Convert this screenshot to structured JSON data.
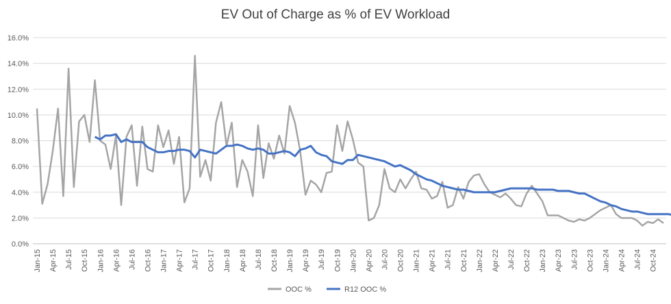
{
  "chart_data": {
    "type": "line",
    "title": "EV Out of Charge as % of EV Workload",
    "xlabel": "",
    "ylabel": "",
    "ylim": [
      0,
      16
    ],
    "y_ticks": [
      "0.0%",
      "2.0%",
      "4.0%",
      "6.0%",
      "8.0%",
      "10.0%",
      "12.0%",
      "14.0%",
      "16.0%"
    ],
    "grid": true,
    "legend_position": "bottom",
    "x_labels": [
      "Jan-15",
      "Apr-15",
      "Jul-15",
      "Oct-15",
      "Jan-16",
      "Apr-16",
      "Jul-16",
      "Oct-16",
      "Jan-17",
      "Apr-17",
      "Jul-17",
      "Oct-17",
      "Jan-18",
      "Apr-18",
      "Jul-18",
      "Oct-18",
      "Jan-19",
      "Apr-19",
      "Jul-19",
      "Oct-19",
      "Jan-20",
      "Apr-20",
      "Jul-20",
      "Oct-20",
      "Jan-21",
      "Apr-21",
      "Jul-21",
      "Oct-21",
      "Jan-22",
      "Apr-22",
      "Jul-22",
      "Oct-22",
      "Jan-23",
      "Apr-23",
      "Jul-23",
      "Oct-23",
      "Jan-24",
      "Apr-24",
      "Jul-24",
      "Oct-24"
    ],
    "series": [
      {
        "name": "OOC %",
        "color": "#a5a5a5",
        "values": [
          10.5,
          3.1,
          4.6,
          7.2,
          10.5,
          3.7,
          13.6,
          4.4,
          9.5,
          10.0,
          7.9,
          12.7,
          8.0,
          7.7,
          5.8,
          8.4,
          3.0,
          8.3,
          9.2,
          4.5,
          9.1,
          5.8,
          5.6,
          9.2,
          7.5,
          8.8,
          6.2,
          8.3,
          3.2,
          4.3,
          14.6,
          5.2,
          6.5,
          4.9,
          9.4,
          11.0,
          7.6,
          9.4,
          4.4,
          6.5,
          5.6,
          3.7,
          9.2,
          5.1,
          7.8,
          6.6,
          8.4,
          7.0,
          10.7,
          9.4,
          7.2,
          3.8,
          4.9,
          4.6,
          4.0,
          5.5,
          5.6,
          9.2,
          7.2,
          9.5,
          8.1,
          6.3,
          6.0,
          1.8,
          2.0,
          3.0,
          5.8,
          4.3,
          4.0,
          5.0,
          4.3,
          5.0,
          5.6,
          4.3,
          4.2,
          3.5,
          3.7,
          4.8,
          2.8,
          3.0,
          4.4,
          3.5,
          4.8,
          5.3,
          5.4,
          4.6,
          4.0,
          3.8,
          3.6,
          3.9,
          3.5,
          3.0,
          2.9,
          3.9,
          4.5,
          3.9,
          3.3,
          2.2,
          2.2,
          2.2,
          2.0,
          1.8,
          1.7,
          1.9,
          1.8,
          2.0,
          2.3,
          2.6,
          2.8,
          3.0,
          2.3,
          2.0,
          2.0,
          2.0,
          1.8,
          1.4,
          1.7,
          1.6,
          1.9,
          1.6
        ]
      },
      {
        "name": "R12 OOC %",
        "color": "#4472c4",
        "start_index": 11,
        "values": [
          8.3,
          8.1,
          8.4,
          8.4,
          8.5,
          7.9,
          8.1,
          7.9,
          7.9,
          7.9,
          7.5,
          7.3,
          7.1,
          7.1,
          7.2,
          7.2,
          7.3,
          7.3,
          7.2,
          6.7,
          7.3,
          7.2,
          7.1,
          7.0,
          7.3,
          7.6,
          7.6,
          7.7,
          7.6,
          7.4,
          7.3,
          7.4,
          7.3,
          7.0,
          7.0,
          7.1,
          7.2,
          7.1,
          6.8,
          7.3,
          7.4,
          7.6,
          7.1,
          6.9,
          6.8,
          6.4,
          6.3,
          6.2,
          6.5,
          6.5,
          6.9,
          6.8,
          6.7,
          6.6,
          6.5,
          6.4,
          6.2,
          6.0,
          6.1,
          5.9,
          5.7,
          5.4,
          5.2,
          5.0,
          4.9,
          4.7,
          4.5,
          4.4,
          4.3,
          4.2,
          4.2,
          4.1,
          4.0,
          4.0,
          4.0,
          4.0,
          4.0,
          4.1,
          4.2,
          4.3,
          4.3,
          4.3,
          4.3,
          4.3,
          4.2,
          4.2,
          4.2,
          4.2,
          4.1,
          4.1,
          4.1,
          4.0,
          3.9,
          3.9,
          3.7,
          3.5,
          3.3,
          3.2,
          3.0,
          2.9,
          2.7,
          2.6,
          2.5,
          2.5,
          2.4,
          2.3,
          2.3,
          2.3,
          2.3,
          2.3,
          2.2,
          2.2,
          2.2,
          2.1,
          2.1,
          2.1,
          2.0,
          2.0
        ]
      }
    ]
  }
}
